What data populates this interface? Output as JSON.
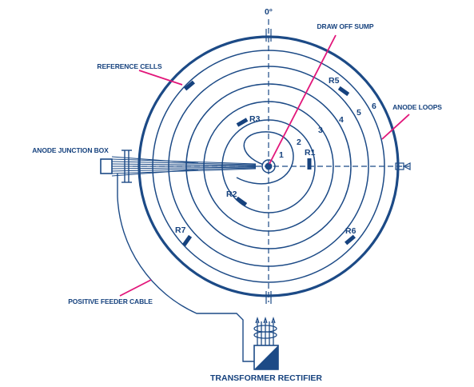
{
  "labels": {
    "zero_degree": "0°",
    "draw_off_sump": "DRAW OFF SUMP",
    "reference_cells": "REFERENCE CELLS",
    "anode_loops": "ANODE LOOPS",
    "anode_junction_box": "ANODE JUNCTION BOX",
    "positive_feeder_cable": "POSITIVE FEEDER CABLE",
    "transformer_rectifier": "TRANSFORMER RECTIFIER"
  },
  "loop_numbers": [
    "1",
    "2",
    "3",
    "4",
    "5",
    "6"
  ],
  "reference_cell_labels": [
    "R1",
    "R2",
    "R3",
    "R5",
    "R6",
    "R7"
  ],
  "colors": {
    "line_blue": "#1c4a86",
    "text_blue": "#16427e",
    "callout_pink": "#e2167a",
    "background": "#ffffff"
  }
}
